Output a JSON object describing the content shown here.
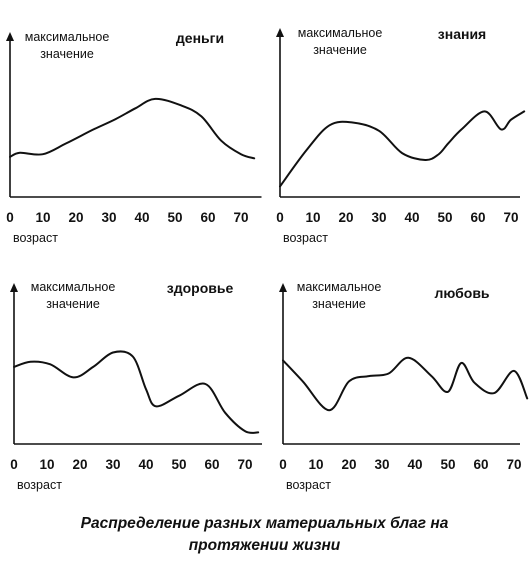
{
  "caption": {
    "line1": "Распределение разных материальных благ на",
    "line2": "протяжении жизни"
  },
  "colors": {
    "ink": "#111111",
    "paper": "#ffffff"
  },
  "chart_data": [
    {
      "type": "line",
      "title": "деньги",
      "ylabel": [
        "максимальное",
        "значение"
      ],
      "xlabel": "возраст",
      "x_ticks": [
        "0",
        "10",
        "20",
        "30",
        "40",
        "50",
        "60",
        "70"
      ],
      "xlim": [
        0,
        75
      ],
      "ylim": [
        0,
        1
      ],
      "grid": false,
      "series": [
        {
          "x": [
            0,
            3,
            10,
            17,
            25,
            32,
            38,
            44,
            52,
            58,
            64,
            70,
            74
          ],
          "y": [
            0.26,
            0.29,
            0.28,
            0.36,
            0.46,
            0.54,
            0.62,
            0.69,
            0.64,
            0.56,
            0.38,
            0.28,
            0.25
          ]
        }
      ]
    },
    {
      "type": "line",
      "title": "знания",
      "ylabel": [
        "максимальное",
        "значение"
      ],
      "xlabel": "возраст",
      "x_ticks": [
        "0",
        "10",
        "20",
        "30",
        "40",
        "50",
        "60",
        "70"
      ],
      "xlim": [
        0,
        75
      ],
      "ylim": [
        0,
        1
      ],
      "grid": false,
      "series": [
        {
          "x": [
            0,
            8,
            15,
            22,
            30,
            37,
            44,
            48,
            51,
            55,
            62,
            67,
            70,
            74
          ],
          "y": [
            0.04,
            0.3,
            0.48,
            0.5,
            0.44,
            0.28,
            0.23,
            0.27,
            0.35,
            0.45,
            0.58,
            0.45,
            0.52,
            0.58
          ]
        }
      ]
    },
    {
      "type": "line",
      "title": "здоровье",
      "ylabel": [
        "максимальное",
        "значение"
      ],
      "xlabel": "возраст",
      "x_ticks": [
        "0",
        "10",
        "20",
        "30",
        "40",
        "50",
        "60",
        "70"
      ],
      "xlim": [
        0,
        75
      ],
      "ylim": [
        0,
        1
      ],
      "grid": false,
      "series": [
        {
          "x": [
            0,
            5,
            11,
            18,
            24,
            30,
            36,
            40,
            43,
            50,
            58,
            64,
            70,
            74
          ],
          "y": [
            0.55,
            0.59,
            0.57,
            0.47,
            0.55,
            0.66,
            0.63,
            0.38,
            0.25,
            0.33,
            0.42,
            0.2,
            0.06,
            0.05
          ]
        }
      ]
    },
    {
      "type": "line",
      "title": "любовь",
      "ylabel": [
        "максимальное",
        "значение"
      ],
      "xlabel": "возраст",
      "x_ticks": [
        "0",
        "10",
        "20",
        "30",
        "40",
        "50",
        "60",
        "70"
      ],
      "xlim": [
        0,
        75
      ],
      "ylim": [
        0,
        1
      ],
      "grid": false,
      "series": [
        {
          "x": [
            0,
            6,
            14,
            20,
            26,
            32,
            38,
            45,
            50,
            54,
            58,
            64,
            70,
            74
          ],
          "y": [
            0.6,
            0.44,
            0.22,
            0.44,
            0.48,
            0.5,
            0.62,
            0.48,
            0.36,
            0.58,
            0.43,
            0.35,
            0.52,
            0.31
          ]
        }
      ]
    }
  ]
}
